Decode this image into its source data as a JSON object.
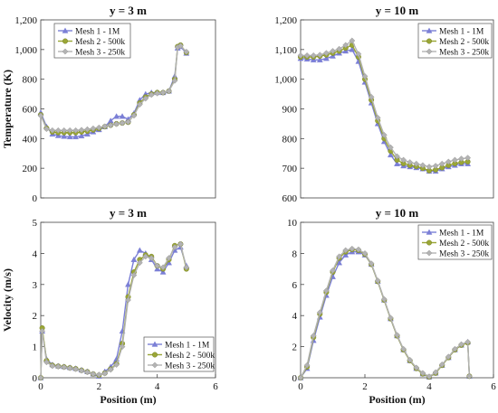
{
  "series_colors": {
    "mesh1": "#7b7fd6",
    "mesh2": "#9aa636",
    "mesh3": "#b3b3b3"
  },
  "chart_data": [
    {
      "type": "line",
      "title": "y = 3 m",
      "xlabel": "",
      "ylabel": "Temperature (K)",
      "xlim": [
        0,
        6
      ],
      "ylim": [
        0,
        1200
      ],
      "xticks": [],
      "yticks": [
        0,
        200,
        400,
        600,
        800,
        1000,
        1200
      ],
      "ytick_labels": [
        "0",
        "200",
        "400",
        "600",
        "800",
        "1,000",
        "1,200"
      ],
      "grid": false,
      "legend": "top-left",
      "series": [
        {
          "name": "Mesh 1 - 1M",
          "color": "#7b7fd6",
          "marker": "triangle",
          "x": [
            0,
            0.2,
            0.4,
            0.6,
            0.8,
            1.0,
            1.2,
            1.4,
            1.6,
            1.8,
            2.0,
            2.2,
            2.4,
            2.6,
            2.8,
            3.0,
            3.2,
            3.4,
            3.6,
            3.8,
            4.0,
            4.2,
            4.4,
            4.6,
            4.7,
            4.8,
            5.0
          ],
          "y": [
            575,
            480,
            430,
            420,
            415,
            412,
            412,
            418,
            430,
            445,
            460,
            480,
            520,
            550,
            550,
            530,
            570,
            660,
            700,
            710,
            710,
            710,
            720,
            820,
            1010,
            1020,
            975
          ]
        },
        {
          "name": "Mesh 2 - 500k",
          "color": "#9aa636",
          "marker": "circle",
          "x": [
            0,
            0.2,
            0.4,
            0.6,
            0.8,
            1.0,
            1.2,
            1.4,
            1.6,
            1.8,
            2.0,
            2.2,
            2.4,
            2.6,
            2.8,
            3.0,
            3.2,
            3.4,
            3.6,
            3.8,
            4.0,
            4.2,
            4.4,
            4.6,
            4.7,
            4.8,
            5.0
          ],
          "y": [
            560,
            470,
            445,
            440,
            440,
            440,
            440,
            445,
            450,
            458,
            468,
            480,
            490,
            500,
            505,
            510,
            560,
            640,
            680,
            700,
            710,
            710,
            720,
            800,
            1020,
            1030,
            980
          ]
        },
        {
          "name": "Mesh 3 - 250k",
          "color": "#b3b3b3",
          "marker": "diamond",
          "x": [
            0,
            0.2,
            0.4,
            0.6,
            0.8,
            1.0,
            1.2,
            1.4,
            1.6,
            1.8,
            2.0,
            2.2,
            2.4,
            2.6,
            2.8,
            3.0,
            3.2,
            3.4,
            3.6,
            3.8,
            4.0,
            4.2,
            4.4,
            4.6,
            4.7,
            4.8,
            5.0
          ],
          "y": [
            555,
            465,
            455,
            455,
            455,
            455,
            455,
            458,
            462,
            468,
            474,
            482,
            490,
            498,
            505,
            512,
            555,
            630,
            670,
            695,
            705,
            710,
            720,
            790,
            1015,
            1025,
            985
          ]
        }
      ]
    },
    {
      "type": "line",
      "title": "y = 10 m",
      "xlabel": "",
      "ylabel": "",
      "xlim": [
        0,
        6
      ],
      "ylim": [
        600,
        1200
      ],
      "xticks": [],
      "yticks": [
        600,
        700,
        800,
        900,
        1000,
        1100,
        1200
      ],
      "ytick_labels": [
        "600",
        "700",
        "800",
        "900",
        "1,000",
        "1,100",
        "1,200"
      ],
      "grid": false,
      "legend": "top-right",
      "series": [
        {
          "name": "Mesh 1 - 1M",
          "color": "#7b7fd6",
          "marker": "triangle",
          "x": [
            0,
            0.2,
            0.4,
            0.6,
            0.8,
            1.0,
            1.2,
            1.4,
            1.6,
            1.8,
            2.0,
            2.2,
            2.4,
            2.6,
            2.8,
            3.0,
            3.2,
            3.4,
            3.6,
            3.8,
            4.0,
            4.2,
            4.4,
            4.6,
            4.8,
            5.0,
            5.2
          ],
          "y": [
            1070,
            1068,
            1065,
            1065,
            1070,
            1078,
            1088,
            1095,
            1100,
            1060,
            990,
            920,
            850,
            790,
            745,
            715,
            708,
            705,
            702,
            698,
            690,
            690,
            698,
            705,
            710,
            715,
            715
          ]
        },
        {
          "name": "Mesh 2 - 500k",
          "color": "#9aa636",
          "marker": "circle",
          "x": [
            0,
            0.2,
            0.4,
            0.6,
            0.8,
            1.0,
            1.2,
            1.4,
            1.6,
            1.8,
            2.0,
            2.2,
            2.4,
            2.6,
            2.8,
            3.0,
            3.2,
            3.4,
            3.6,
            3.8,
            4.0,
            4.2,
            4.4,
            4.6,
            4.8,
            5.0,
            5.2
          ],
          "y": [
            1075,
            1075,
            1075,
            1078,
            1082,
            1088,
            1095,
            1105,
            1115,
            1075,
            1000,
            930,
            860,
            800,
            758,
            728,
            716,
            710,
            706,
            700,
            692,
            695,
            702,
            710,
            716,
            720,
            722
          ]
        },
        {
          "name": "Mesh 3 - 250k",
          "color": "#b3b3b3",
          "marker": "diamond",
          "x": [
            0,
            0.2,
            0.4,
            0.6,
            0.8,
            1.0,
            1.2,
            1.4,
            1.6,
            1.8,
            2.0,
            2.2,
            2.4,
            2.6,
            2.8,
            3.0,
            3.2,
            3.4,
            3.6,
            3.8,
            4.0,
            4.2,
            4.4,
            4.6,
            4.8,
            5.0,
            5.2
          ],
          "y": [
            1080,
            1080,
            1080,
            1082,
            1088,
            1095,
            1102,
            1115,
            1130,
            1085,
            1010,
            940,
            870,
            812,
            770,
            740,
            728,
            720,
            715,
            710,
            705,
            708,
            715,
            722,
            728,
            732,
            735
          ]
        }
      ]
    },
    {
      "type": "line",
      "title": "y = 3 m",
      "xlabel": "Position (m)",
      "ylabel": "Velocity (m/s)",
      "xlim": [
        0,
        6
      ],
      "ylim": [
        0,
        5
      ],
      "xticks": [
        0,
        2,
        4,
        6
      ],
      "yticks": [
        0,
        1,
        2,
        3,
        4,
        5
      ],
      "grid": false,
      "legend": "bottom-right",
      "series": [
        {
          "name": "Mesh 1 - 1M",
          "color": "#7b7fd6",
          "marker": "triangle",
          "x": [
            0,
            0.05,
            0.2,
            0.4,
            0.6,
            0.8,
            1.0,
            1.2,
            1.4,
            1.6,
            1.8,
            2.0,
            2.2,
            2.4,
            2.6,
            2.8,
            3.0,
            3.2,
            3.4,
            3.6,
            3.8,
            4.0,
            4.2,
            4.4,
            4.6,
            4.8,
            5.0
          ],
          "y": [
            0,
            1.5,
            0.6,
            0.42,
            0.38,
            0.36,
            0.33,
            0.3,
            0.25,
            0.2,
            0.12,
            0.05,
            0.2,
            0.35,
            0.6,
            1.5,
            3.0,
            3.8,
            4.1,
            4.0,
            3.8,
            3.5,
            3.4,
            3.7,
            4.1,
            4.2,
            3.6
          ]
        },
        {
          "name": "Mesh 2 - 500k",
          "color": "#9aa636",
          "marker": "circle",
          "x": [
            0,
            0.05,
            0.2,
            0.4,
            0.6,
            0.8,
            1.0,
            1.2,
            1.4,
            1.6,
            1.8,
            2.0,
            2.2,
            2.4,
            2.6,
            2.8,
            3.0,
            3.2,
            3.4,
            3.6,
            3.8,
            4.0,
            4.2,
            4.4,
            4.6,
            4.8,
            5.0
          ],
          "y": [
            0,
            1.6,
            0.55,
            0.4,
            0.37,
            0.35,
            0.32,
            0.29,
            0.24,
            0.19,
            0.12,
            0.08,
            0.15,
            0.28,
            0.45,
            1.1,
            2.6,
            3.4,
            3.8,
            3.95,
            3.9,
            3.6,
            3.5,
            3.8,
            4.25,
            4.3,
            3.5
          ]
        },
        {
          "name": "Mesh 3 - 250k",
          "color": "#b3b3b3",
          "marker": "diamond",
          "x": [
            0,
            0.05,
            0.2,
            0.4,
            0.6,
            0.8,
            1.0,
            1.2,
            1.4,
            1.6,
            1.8,
            2.0,
            2.2,
            2.4,
            2.6,
            2.8,
            3.0,
            3.2,
            3.4,
            3.6,
            3.8,
            4.0,
            4.2,
            4.4,
            4.6,
            4.8,
            5.0
          ],
          "y": [
            0,
            1.5,
            0.5,
            0.38,
            0.36,
            0.34,
            0.31,
            0.28,
            0.23,
            0.18,
            0.12,
            0.1,
            0.14,
            0.26,
            0.42,
            1.0,
            2.5,
            3.3,
            3.7,
            3.9,
            3.85,
            3.6,
            3.55,
            3.85,
            4.2,
            4.3,
            3.55
          ]
        }
      ]
    },
    {
      "type": "line",
      "title": "y = 10 m",
      "xlabel": "Position (m)",
      "ylabel": "",
      "xlim": [
        0,
        6
      ],
      "ylim": [
        0,
        10
      ],
      "xticks": [
        0,
        2,
        4,
        6
      ],
      "yticks": [
        0,
        2,
        4,
        6,
        8,
        10
      ],
      "grid": false,
      "legend": "top-right",
      "series": [
        {
          "name": "Mesh 1 - 1M",
          "color": "#7b7fd6",
          "marker": "triangle",
          "x": [
            0,
            0.2,
            0.4,
            0.6,
            0.8,
            1.0,
            1.2,
            1.4,
            1.6,
            1.8,
            2.0,
            2.2,
            2.4,
            2.6,
            2.8,
            3.0,
            3.2,
            3.4,
            3.6,
            3.8,
            4.0,
            4.2,
            4.4,
            4.6,
            4.8,
            5.0,
            5.2,
            5.25
          ],
          "y": [
            0,
            0.6,
            2.4,
            3.9,
            5.3,
            6.5,
            7.4,
            7.9,
            8.1,
            8.1,
            7.9,
            7.3,
            6.2,
            5.0,
            3.8,
            2.7,
            1.8,
            1.1,
            0.6,
            0.25,
            0.05,
            0.3,
            0.8,
            1.3,
            1.8,
            2.1,
            2.3,
            0.1
          ]
        },
        {
          "name": "Mesh 2 - 500k",
          "color": "#9aa636",
          "marker": "circle",
          "x": [
            0,
            0.2,
            0.4,
            0.6,
            0.8,
            1.0,
            1.2,
            1.4,
            1.6,
            1.8,
            2.0,
            2.2,
            2.4,
            2.6,
            2.8,
            3.0,
            3.2,
            3.4,
            3.6,
            3.8,
            4.0,
            4.2,
            4.4,
            4.6,
            4.8,
            5.0,
            5.2,
            5.25
          ],
          "y": [
            0,
            0.7,
            2.6,
            4.1,
            5.5,
            6.8,
            7.7,
            8.1,
            8.25,
            8.2,
            7.95,
            7.3,
            6.2,
            5.0,
            3.8,
            2.7,
            1.8,
            1.1,
            0.6,
            0.25,
            0.05,
            0.3,
            0.8,
            1.3,
            1.8,
            2.1,
            2.25,
            0.1
          ]
        },
        {
          "name": "Mesh 3 - 250k",
          "color": "#b3b3b3",
          "marker": "diamond",
          "x": [
            0,
            0.2,
            0.4,
            0.6,
            0.8,
            1.0,
            1.2,
            1.4,
            1.6,
            1.8,
            2.0,
            2.2,
            2.4,
            2.6,
            2.8,
            3.0,
            3.2,
            3.4,
            3.6,
            3.8,
            4.0,
            4.2,
            4.4,
            4.6,
            4.8,
            5.0,
            5.2,
            5.25
          ],
          "y": [
            0,
            0.8,
            2.7,
            4.2,
            5.6,
            6.9,
            7.8,
            8.2,
            8.3,
            8.25,
            8.0,
            7.35,
            6.25,
            5.05,
            3.85,
            2.75,
            1.85,
            1.15,
            0.65,
            0.3,
            0.08,
            0.35,
            0.85,
            1.35,
            1.85,
            2.15,
            2.3,
            0.1
          ]
        }
      ]
    }
  ]
}
